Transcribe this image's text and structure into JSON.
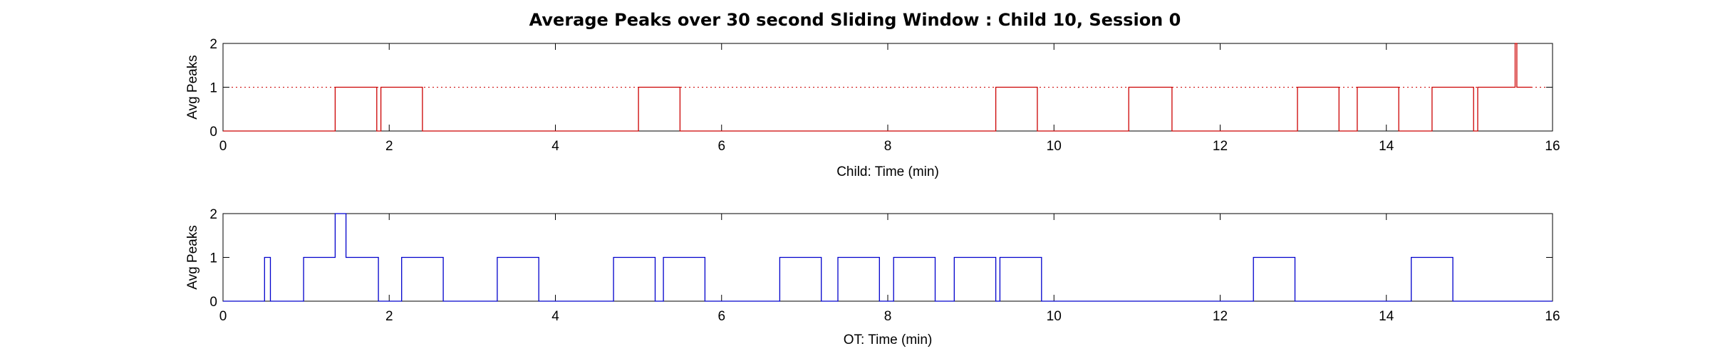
{
  "title": "Average Peaks over 30 second Sliding Window : Child 10, Session 0",
  "chart_data": [
    {
      "type": "line",
      "xlabel": "Child: Time (min)",
      "ylabel": "Avg Peaks",
      "xlim": [
        0,
        16
      ],
      "ylim": [
        0,
        2
      ],
      "xticks": [
        0,
        2,
        4,
        6,
        8,
        10,
        12,
        14,
        16
      ],
      "yticks": [
        0,
        1,
        2
      ],
      "grid": false,
      "reference_line": {
        "y": 1,
        "style": "dotted"
      },
      "color": "#cc0000",
      "series": [
        {
          "x": [
            0,
            1.35,
            1.35,
            1.85,
            1.85,
            1.9,
            1.9,
            2.4,
            2.4,
            5.0,
            5.0,
            5.5,
            5.5,
            9.3,
            9.3,
            9.8,
            9.8,
            10.9,
            10.9,
            11.42,
            11.42,
            12.93,
            12.93,
            13.43,
            13.43,
            13.65,
            13.65,
            14.15,
            14.15,
            14.55,
            14.55,
            15.05,
            15.05,
            15.1,
            15.1,
            15.55,
            15.55,
            15.57,
            15.57,
            15.6,
            15.6,
            15.75
          ],
          "y": [
            0,
            0,
            1,
            1,
            0,
            0,
            1,
            1,
            0,
            0,
            1,
            1,
            0,
            0,
            1,
            1,
            0,
            0,
            1,
            1,
            0,
            0,
            1,
            1,
            0,
            0,
            1,
            1,
            0,
            0,
            1,
            1,
            0,
            0,
            1,
            1,
            2,
            2,
            1,
            1,
            1,
            1
          ]
        }
      ]
    },
    {
      "type": "line",
      "xlabel": "OT: Time (min)",
      "ylabel": "Avg Peaks",
      "xlim": [
        0,
        16
      ],
      "ylim": [
        0,
        2
      ],
      "xticks": [
        0,
        2,
        4,
        6,
        8,
        10,
        12,
        14,
        16
      ],
      "yticks": [
        0,
        1,
        2
      ],
      "grid": false,
      "color": "#0000cc",
      "series": [
        {
          "x": [
            0,
            0.5,
            0.5,
            0.57,
            0.57,
            0.97,
            0.97,
            1.35,
            1.35,
            1.48,
            1.48,
            1.87,
            1.87,
            2.15,
            2.15,
            2.65,
            2.65,
            3.3,
            3.3,
            3.8,
            3.8,
            4.7,
            4.7,
            5.2,
            5.2,
            5.3,
            5.3,
            5.8,
            5.8,
            6.7,
            6.7,
            7.2,
            7.2,
            7.4,
            7.4,
            7.9,
            7.9,
            8.07,
            8.07,
            8.57,
            8.57,
            8.8,
            8.8,
            9.3,
            9.3,
            9.35,
            9.35,
            9.85,
            9.85,
            12.4,
            12.4,
            12.9,
            12.9,
            14.3,
            14.3,
            14.8,
            14.8,
            16
          ],
          "y": [
            0,
            0,
            1,
            1,
            0,
            0,
            1,
            1,
            2,
            2,
            1,
            1,
            0,
            0,
            1,
            1,
            0,
            0,
            1,
            1,
            0,
            0,
            1,
            1,
            0,
            0,
            1,
            1,
            0,
            0,
            1,
            1,
            0,
            0,
            1,
            1,
            0,
            0,
            1,
            1,
            0,
            0,
            1,
            1,
            0,
            0,
            1,
            1,
            0,
            0,
            1,
            1,
            0,
            0,
            1,
            1,
            0,
            0
          ]
        }
      ]
    }
  ]
}
